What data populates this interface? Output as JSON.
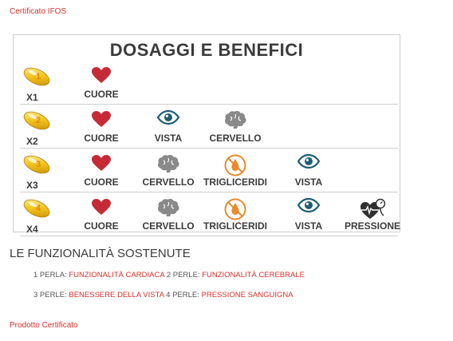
{
  "header": {
    "cert_link": "Certificato IFOS"
  },
  "card": {
    "title": "DOSAGGI E BENEFICI",
    "rows": [
      {
        "pearl_number": "1",
        "pearl_label": "X1",
        "benefits": [
          "CUORE"
        ]
      },
      {
        "pearl_number": "2",
        "pearl_label": "X2",
        "benefits": [
          "CUORE",
          "VISTA",
          "CERVELLO"
        ]
      },
      {
        "pearl_number": "3",
        "pearl_label": "X3",
        "benefits": [
          "CUORE",
          "CERVELLO",
          "TRIGLICERIDI",
          "VISTA"
        ]
      },
      {
        "pearl_number": "4",
        "pearl_label": "X4",
        "benefits": [
          "CUORE",
          "CERVELLO",
          "TRIGLICERIDI",
          "VISTA",
          "PRESSIONE"
        ]
      }
    ],
    "icons": {
      "CUORE": "heart-icon",
      "VISTA": "eye-icon",
      "CERVELLO": "brain-icon",
      "TRIGLICERIDI": "no-fat-icon",
      "PRESSIONE": "blood-pressure-icon"
    },
    "colors": {
      "heart": "#c62a36",
      "eye": "#1c5d73",
      "brain": "#8a8a8a",
      "fat": "#e98a2c",
      "text": "#3b3b3b"
    }
  },
  "functions": {
    "title": "LE FUNZIONALITÀ SOSTENUTE",
    "line1": {
      "k1": "1 PERLA:",
      "v1": "FUNZIONALITÀ CARDIACA",
      "k2": "2 PERLE:",
      "v2": "FUNZIONALITÀ CEREBRALE"
    },
    "line2": {
      "k1": "3 PERLE:",
      "v1": "BENESSERE DELLA VISTA",
      "k2": "4 PERLE:",
      "v2": "PRESSIONE SANGUIGNA"
    }
  },
  "footer": {
    "prod_link": "Prodotto Certificato"
  }
}
